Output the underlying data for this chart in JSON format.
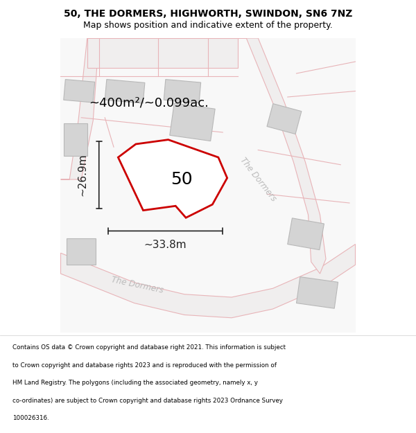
{
  "title_line1": "50, THE DORMERS, HIGHWORTH, SWINDON, SN6 7NZ",
  "title_line2": "Map shows position and indicative extent of the property.",
  "area_text": "~400m²/~0.099ac.",
  "label_50": "50",
  "dim_width": "~33.8m",
  "dim_height": "~26.9m",
  "road_label1": "The Dormers",
  "road_label2": "The Dormers",
  "footer_lines": [
    "Contains OS data © Crown copyright and database right 2021. This information is subject",
    "to Crown copyright and database rights 2023 and is reproduced with the permission of",
    "HM Land Registry. The polygons (including the associated geometry, namely x, y",
    "co-ordinates) are subject to Crown copyright and database rights 2023 Ordnance Survey",
    "100026316."
  ],
  "bg_color": "#ffffff",
  "map_bg": "#f5f5f5",
  "road_outline": "#e8b4b8",
  "building_fill": "#d4d4d4",
  "building_outline": "#b8b8b8",
  "plot_outline": "#cc0000",
  "plot_fill": "#ffffff",
  "dim_color": "#222222",
  "title_color": "#000000",
  "footer_color": "#000000",
  "area_color": "#000000",
  "road_text_color": "#bbbbbb",
  "label_color": "#000000"
}
